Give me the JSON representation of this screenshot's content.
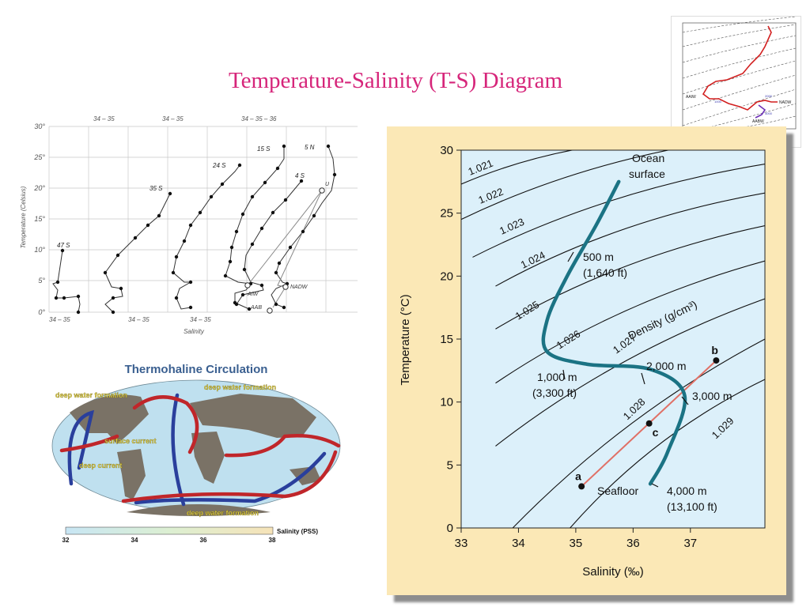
{
  "slide": {
    "title": "Temperature-Salinity (T-S) Diagram"
  },
  "ts_profiles": {
    "y_label": "Temperature  (Celsius)",
    "x_label": "Salinity",
    "y_ticks": [
      "0°",
      "5°",
      "10°",
      "15°",
      "20°",
      "25°",
      "30°"
    ],
    "top_ranges": [
      "34 – 35",
      "34 – 35",
      "34 – 35 – 36"
    ],
    "bottom_ranges": [
      "34 – 35",
      "34 – 35",
      "34 – 35"
    ],
    "station_labels": [
      "47 S",
      "35 S",
      "24 S",
      "15 S",
      "4 S",
      "5 N"
    ],
    "water_masses": [
      "AIW",
      "NADW",
      "AAB",
      "U"
    ]
  },
  "thermohaline": {
    "title": "Thermohaline Circulation",
    "labels": [
      "deep water formation",
      "deep water formation",
      "surface current",
      "deep current",
      "deep water formation"
    ],
    "colorbar_label": "Salinity (PSS)",
    "colorbar_ticks": [
      "32",
      "34",
      "36",
      "38"
    ],
    "colors": {
      "surface_current": "#c0262a",
      "deep_current": "#2a3f9c",
      "ocean": "#bfe0ef",
      "land": "#7a7266"
    }
  },
  "thumbnail": {
    "labels": [
      "AAIW",
      "NADW",
      "AABW",
      "1000",
      "2000",
      "4000"
    ]
  },
  "main_diagram": {
    "ylabel": "Temperature (°C)",
    "xlabel": "Salinity (‰)",
    "x_ticks": [
      "33",
      "34",
      "35",
      "36",
      "37"
    ],
    "y_ticks": [
      "0",
      "5",
      "10",
      "15",
      "20",
      "25",
      "30"
    ],
    "xlim": [
      33,
      38.3
    ],
    "ylim": [
      0,
      30
    ],
    "density_title": "Density (g/cm³)",
    "isopycnals": [
      "1.021",
      "1.022",
      "1.023",
      "1.024",
      "1.025",
      "1.026",
      "1.027",
      "1.028",
      "1.029"
    ],
    "profile_labels": {
      "surface_line1": "Ocean",
      "surface_line2": "surface",
      "m500_line1": "500 m",
      "m500_line2": "(1,640 ft)",
      "m1000_line1": "1,000 m",
      "m1000_line2": "(3,300 ft)",
      "m2000": "2,000 m",
      "m3000": "3,000 m",
      "seafloor": "Seafloor",
      "m4000_line1": "4,000 m",
      "m4000_line2": "(13,100 ft)"
    },
    "points": [
      {
        "label": "a",
        "salinity": 35.1,
        "temperature": 3.3
      },
      {
        "label": "b",
        "salinity": 37.45,
        "temperature": 13.3
      },
      {
        "label": "c",
        "salinity": 36.28,
        "temperature": 8.3
      }
    ],
    "profile_curve": [
      [
        35.75,
        27.5
      ],
      [
        35.35,
        24.0
      ],
      [
        34.85,
        20.0
      ],
      [
        34.5,
        16.5
      ],
      [
        34.5,
        14.0
      ],
      [
        35.2,
        13.0
      ],
      [
        36.3,
        12.6
      ],
      [
        36.9,
        10.5
      ],
      [
        36.6,
        6.0
      ],
      [
        36.3,
        3.5
      ]
    ],
    "colors": {
      "plot_bg": "#dcf0fa",
      "frame": "#fbe8b6",
      "profile": "#1b7384",
      "mixing_line": "#e07066"
    }
  }
}
